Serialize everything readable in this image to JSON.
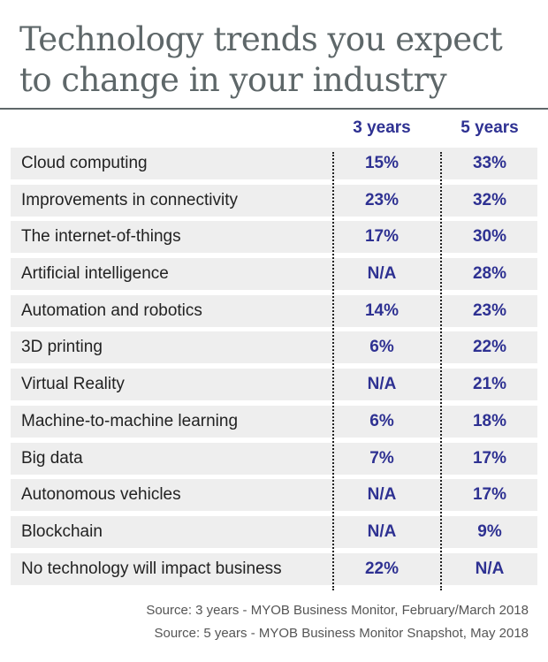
{
  "title": "Technology trends you expect to change in your industry",
  "chart_data": {
    "type": "table",
    "title": "Technology trends you expect to change in your industry",
    "columns": [
      "3 years",
      "5 years"
    ],
    "rows": [
      {
        "label": "Cloud computing",
        "three_years": "15%",
        "five_years": "33%"
      },
      {
        "label": "Improvements in connectivity",
        "three_years": "23%",
        "five_years": "32%"
      },
      {
        "label": "The internet-of-things",
        "three_years": "17%",
        "five_years": "30%"
      },
      {
        "label": "Artificial intelligence",
        "three_years": "N/A",
        "five_years": "28%"
      },
      {
        "label": "Automation and robotics",
        "three_years": "14%",
        "five_years": "23%"
      },
      {
        "label": "3D printing",
        "three_years": "6%",
        "five_years": "22%"
      },
      {
        "label": "Virtual Reality",
        "three_years": "N/A",
        "five_years": "21%"
      },
      {
        "label": "Machine-to-machine learning",
        "three_years": "6%",
        "five_years": "18%"
      },
      {
        "label": "Big data",
        "three_years": "7%",
        "five_years": "17%"
      },
      {
        "label": "Autonomous vehicles",
        "three_years": "N/A",
        "five_years": "17%"
      },
      {
        "label": "Blockchain",
        "three_years": "N/A",
        "five_years": "9%"
      },
      {
        "label": "No technology will impact business",
        "three_years": "22%",
        "five_years": "N/A"
      }
    ]
  },
  "sources": [
    "Source: 3 years - MYOB Business Monitor, February/March 2018",
    "Source: 5 years - MYOB Business Monitor Snapshot, May 2018"
  ],
  "colors": {
    "title": "#5e6769",
    "values": "#2e3192",
    "row_background": "#eeeeee"
  }
}
